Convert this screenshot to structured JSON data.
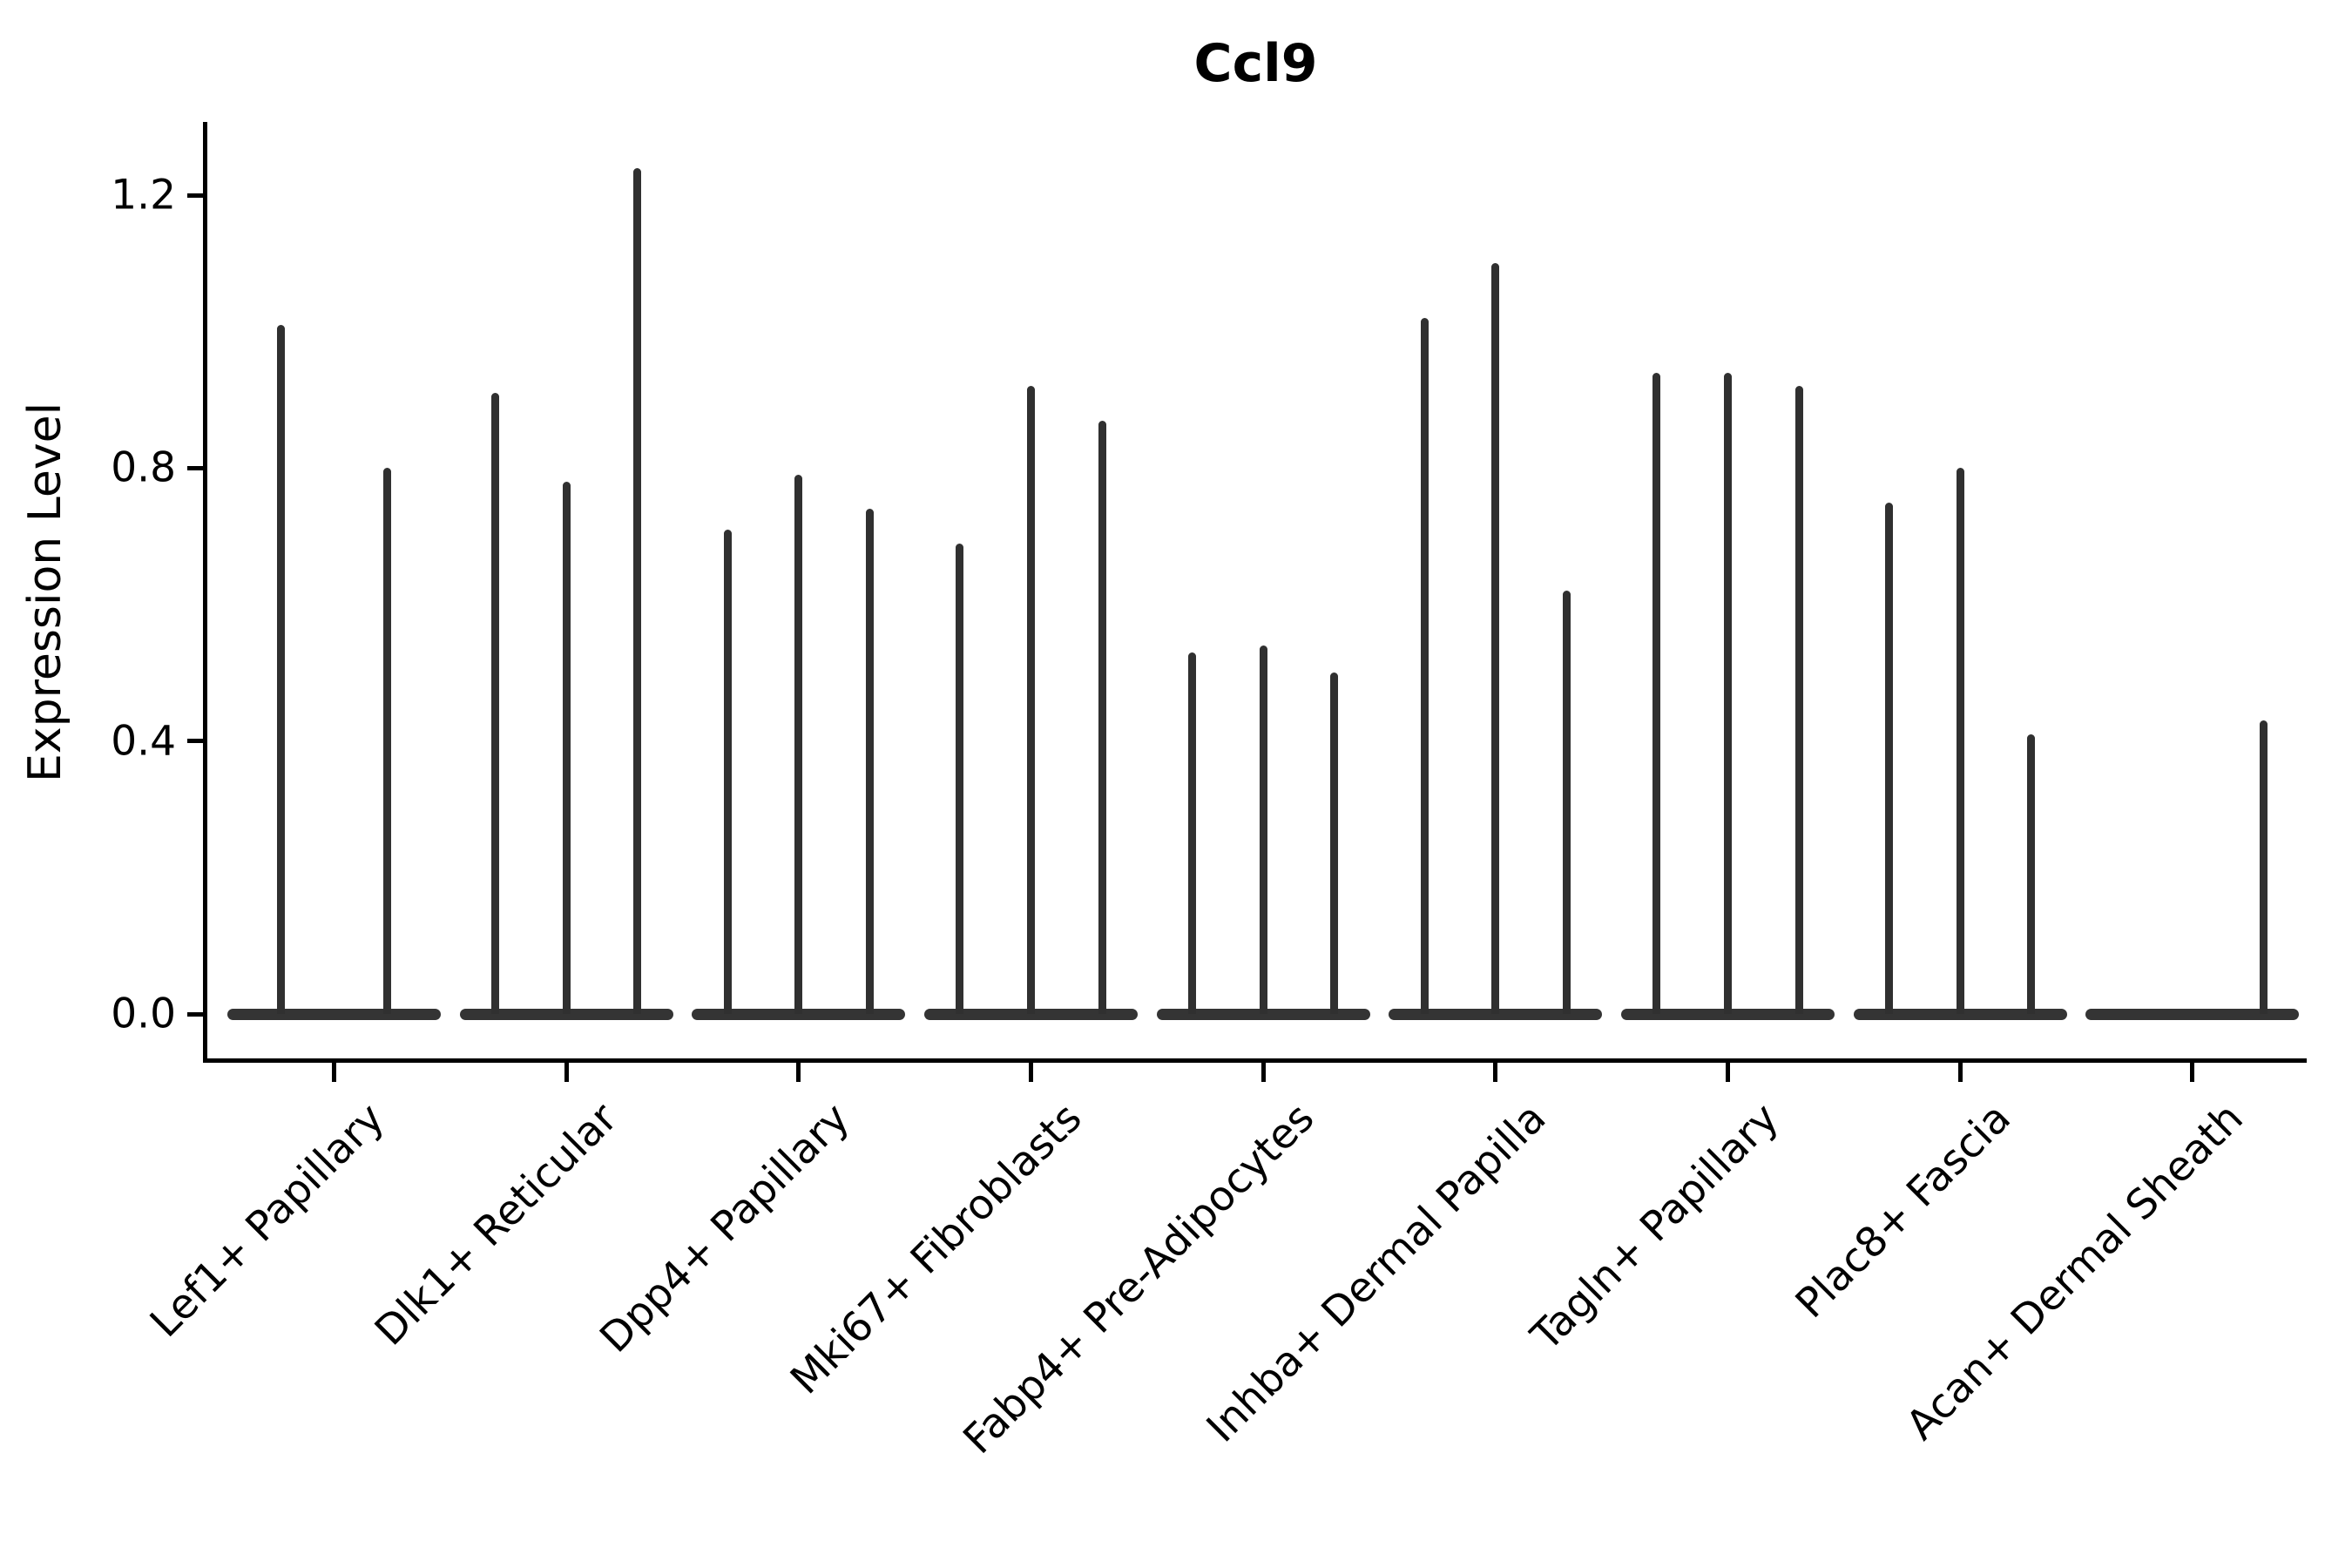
{
  "chart_data": {
    "type": "violin",
    "title": "Ccl9",
    "xlabel": "",
    "ylabel": "Expression Level",
    "ylim": [
      0,
      1.3
    ],
    "yticks": [
      {
        "value": 0.0,
        "label": "0.0"
      },
      {
        "value": 0.4,
        "label": "0.4"
      },
      {
        "value": 0.8,
        "label": "0.8"
      },
      {
        "value": 1.2,
        "label": "1.2"
      }
    ],
    "grid": "off",
    "legend": "none",
    "violin_style": "flat density mass at zero with thin spike up to group maximum",
    "violin_color": "#333333",
    "groups": [
      {
        "category": "Lef1+ Papillary",
        "violin_max_values": [
          1.01,
          0.8
        ]
      },
      {
        "category": "Dlk1+ Reticular",
        "violin_max_values": [
          0.91,
          0.78,
          1.24
        ]
      },
      {
        "category": "Dpp4+ Papillary",
        "violin_max_values": [
          0.71,
          0.79,
          0.74
        ]
      },
      {
        "category": "Mki67+ Fibroblasts",
        "violin_max_values": [
          0.69,
          0.92,
          0.87
        ]
      },
      {
        "category": "Fabp4+ Pre-Adipocytes",
        "violin_max_values": [
          0.53,
          0.54,
          0.5
        ]
      },
      {
        "category": "Inhba+ Dermal Papilla",
        "violin_max_values": [
          1.02,
          1.1,
          0.62
        ]
      },
      {
        "category": "Tagln+ Papillary",
        "violin_max_values": [
          0.94,
          0.94,
          0.92
        ]
      },
      {
        "category": "Plac8+ Fascia",
        "violin_max_values": [
          0.75,
          0.8,
          0.41
        ]
      },
      {
        "category": "Acan+ Dermal Sheath",
        "violin_max_values": [
          0.0,
          0.0,
          0.43
        ]
      }
    ]
  }
}
